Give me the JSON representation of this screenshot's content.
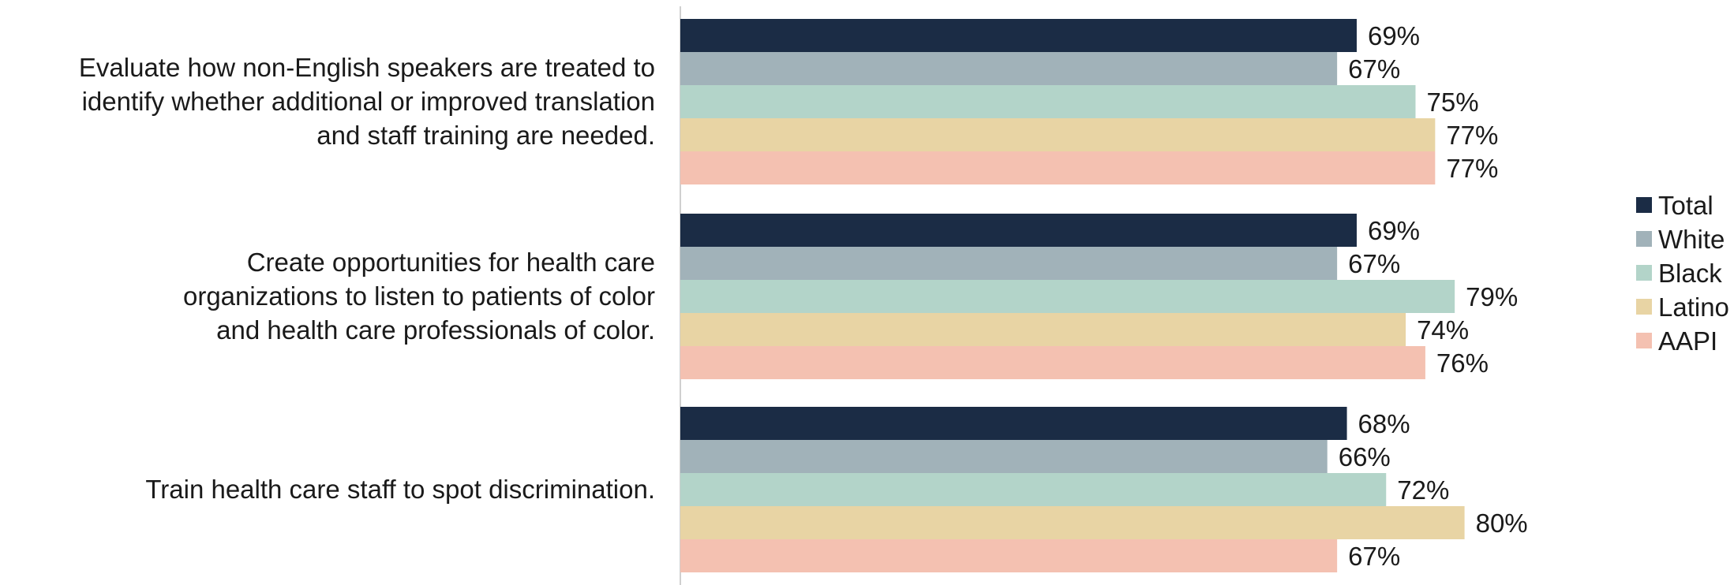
{
  "chart_data": {
    "type": "bar",
    "orientation": "horizontal",
    "categories": [
      [
        "Evaluate how non-English speakers are treated to",
        "identify whether additional or improved translation",
        "and staff training are needed."
      ],
      [
        "Create opportunities for health care",
        "organizations to listen to patients of color",
        "and health care professionals of color."
      ],
      [
        "Train health care staff to spot discrimination."
      ]
    ],
    "series": [
      {
        "name": "Total",
        "color": "#1b2c45",
        "values": [
          69,
          69,
          68
        ]
      },
      {
        "name": "White",
        "color": "#a1b2b9",
        "values": [
          67,
          67,
          66
        ]
      },
      {
        "name": "Black",
        "color": "#b3d4c9",
        "values": [
          75,
          79,
          72
        ]
      },
      {
        "name": "Latino",
        "color": "#e8d4a4",
        "values": [
          77,
          74,
          80
        ]
      },
      {
        "name": "AAPI",
        "color": "#f4c1b1",
        "values": [
          77,
          76,
          67
        ]
      }
    ],
    "value_suffix": "%",
    "xlim": [
      0,
      100
    ],
    "legend_position": "right",
    "grid": false,
    "title": "",
    "xlabel": "",
    "ylabel": ""
  }
}
